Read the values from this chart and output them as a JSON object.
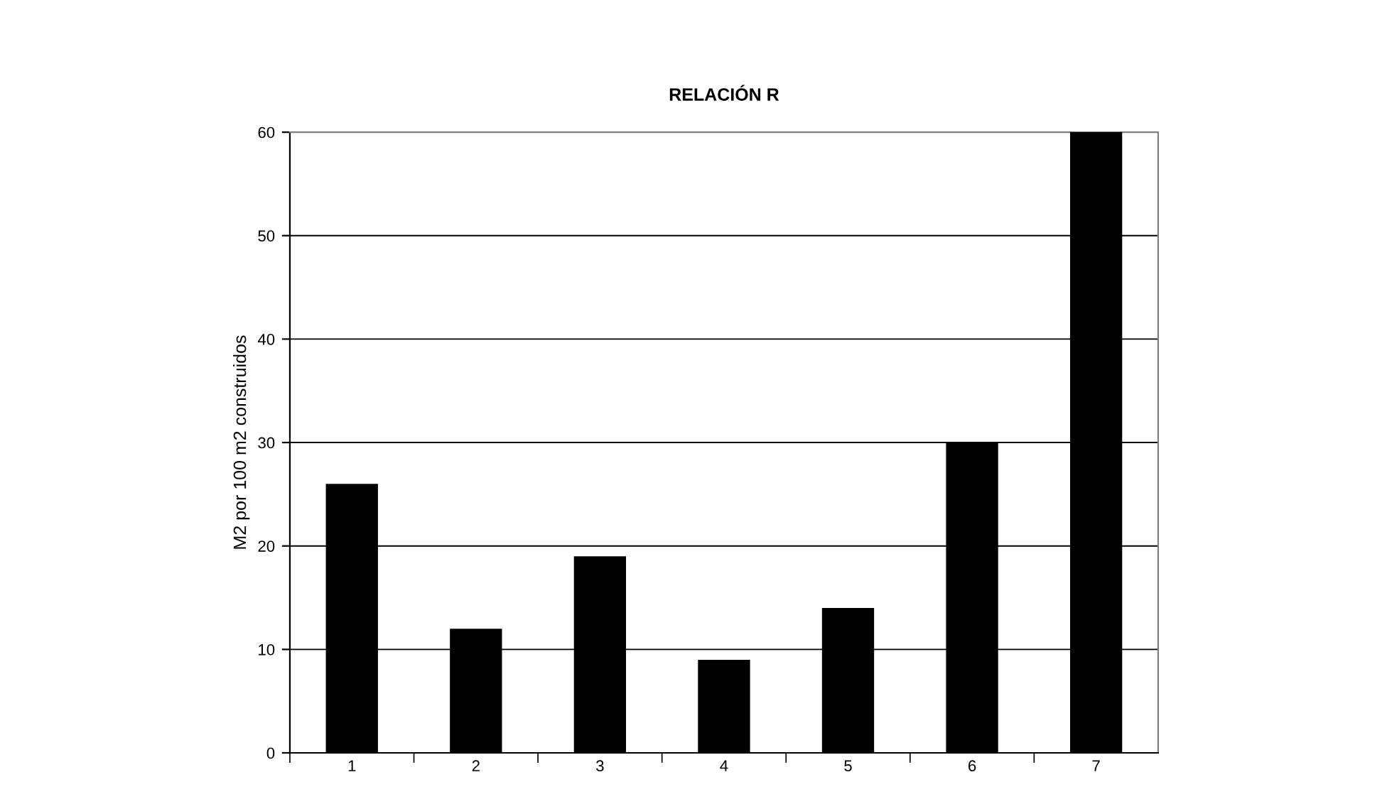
{
  "chart_data": {
    "type": "bar",
    "title": "RELACIÓN R",
    "ylabel": "M2 por 100 m2 construidos",
    "categories": [
      "1",
      "2",
      "3",
      "4",
      "5",
      "6",
      "7"
    ],
    "values": [
      26,
      12,
      19,
      9,
      14,
      30,
      60
    ],
    "color": "#000000",
    "ylim": [
      0,
      60
    ],
    "yticks": [
      0,
      10,
      20,
      30,
      40,
      50,
      60
    ],
    "grid": "y",
    "legend": false
  }
}
